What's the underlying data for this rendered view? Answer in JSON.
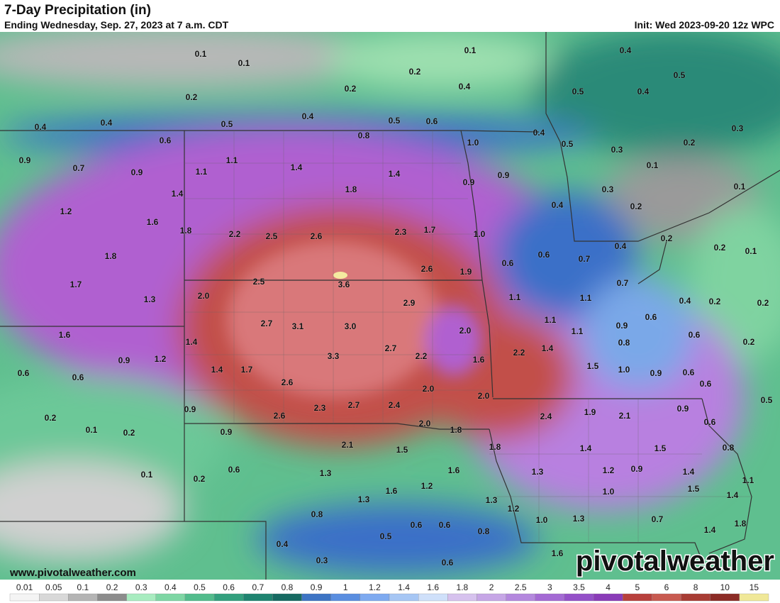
{
  "header": {
    "title": "7-Day Precipitation (in)",
    "subtitle": "Ending Wednesday, Sep. 27, 2023 at 7 a.m. CDT",
    "init": "Init: Wed 2023-09-20 12z WPC"
  },
  "map": {
    "labels": [
      "0.1",
      "0.1",
      "0.1",
      "0.4",
      "0.2",
      "0.5",
      "0.2",
      "0.2",
      "0.4",
      "0.5",
      "0.4",
      "0.4",
      "0.4",
      "0.5",
      "0.4",
      "0.5",
      "0.6",
      "0.3",
      "0.8",
      "0.4",
      "0.6",
      "0.5",
      "1.0",
      "0.3",
      "0.2",
      "0.9",
      "1.1",
      "0.7",
      "1.4",
      "0.1",
      "1.1",
      "0.9",
      "1.4",
      "0.9",
      "0.9",
      "0.1",
      "1.4",
      "0.3",
      "1.8",
      "0.4",
      "0.2",
      "1.2",
      "1.6",
      "1.8",
      "2.2",
      "2.5",
      "2.6",
      "2.3",
      "1.7",
      "1.0",
      "0.2",
      "0.4",
      "0.2",
      "0.1",
      "1.8",
      "0.6",
      "0.7",
      "0.6",
      "2.6",
      "1.9",
      "2.5",
      "3.6",
      "0.7",
      "1.7",
      "2.0",
      "1.1",
      "1.1",
      "0.4",
      "0.2",
      "0.2",
      "1.3",
      "2.9",
      "0.6",
      "1.1",
      "2.7",
      "3.1",
      "3.0",
      "0.9",
      "2.0",
      "1.1",
      "0.6",
      "1.6",
      "0.8",
      "1.4",
      "0.2",
      "1.4",
      "2.7",
      "2.2",
      "0.9",
      "1.2",
      "3.3",
      "2.2",
      "1.6",
      "1.5",
      "1.0",
      "0.9",
      "0.6",
      "0.6",
      "1.4",
      "1.7",
      "0.6",
      "2.6",
      "0.6",
      "2.0",
      "2.0",
      "0.5",
      "2.7",
      "2.4",
      "2.3",
      "0.9",
      "0.9",
      "1.9",
      "2.1",
      "2.6",
      "2.4",
      "0.2",
      "2.0",
      "0.6",
      "1.8",
      "0.1",
      "0.2",
      "0.9",
      "1.8",
      "2.1",
      "1.5",
      "1.4",
      "1.5",
      "0.8",
      "1.6",
      "0.6",
      "1.2",
      "0.9",
      "1.3",
      "1.3",
      "1.4",
      "0.1",
      "0.2",
      "1.1",
      "1.6",
      "1.2",
      "1.0",
      "1.5",
      "1.4",
      "1.3",
      "1.3",
      "1.2",
      "0.8",
      "1.0",
      "1.3",
      "0.7",
      "1.8",
      "0.6",
      "0.6",
      "0.8",
      "1.4",
      "0.5",
      "0.4",
      "1.6",
      "0.3",
      "0.6"
    ]
  },
  "footer": {
    "website": "www.pivotalweather.com",
    "logo": "pivotalweather"
  },
  "colorbar": {
    "labels": [
      "0.01",
      "0.05",
      "0.1",
      "0.2",
      "0.3",
      "0.4",
      "0.5",
      "0.6",
      "0.7",
      "0.8",
      "0.9",
      "1",
      "1.2",
      "1.4",
      "1.6",
      "1.8",
      "2",
      "2.5",
      "3",
      "3.5",
      "4",
      "5",
      "6",
      "8",
      "10",
      "15"
    ]
  }
}
